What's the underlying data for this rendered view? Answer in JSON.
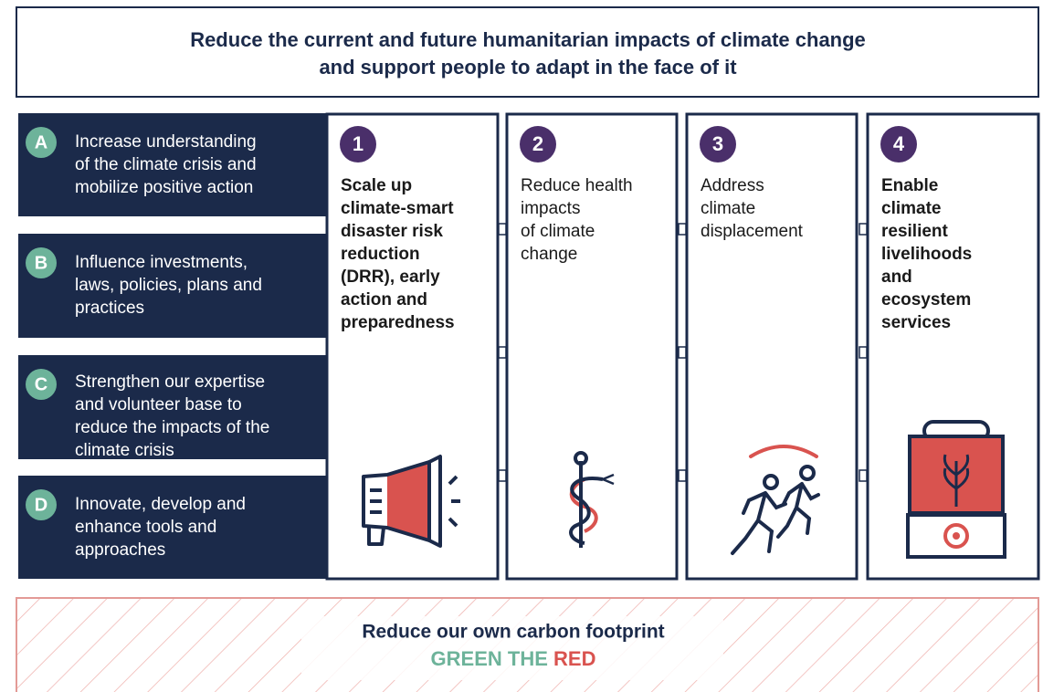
{
  "header": {
    "title_lines": [
      "Reduce the current and future humanitarian impacts of climate change",
      "and support people to adapt in the face of it"
    ]
  },
  "goals": [
    {
      "letter": "A",
      "lines": [
        "Increase understanding",
        "of the climate crisis and",
        "mobilize positive action"
      ]
    },
    {
      "letter": "B",
      "lines": [
        "Influence investments,",
        "laws, policies, plans and",
        "practices"
      ]
    },
    {
      "letter": "C",
      "lines": [
        "Strengthen our expertise",
        "and volunteer base to",
        "reduce the impacts of the",
        "climate crisis"
      ]
    },
    {
      "letter": "D",
      "lines": [
        "Innovate, develop and",
        "enhance tools and",
        "approaches"
      ]
    }
  ],
  "pillars": [
    {
      "number": "1",
      "bold": true,
      "lines": [
        "Scale up",
        "climate-smart",
        "disaster risk",
        "reduction",
        "(DRR), early",
        "action and",
        "preparedness"
      ]
    },
    {
      "number": "2",
      "bold": false,
      "lines": [
        "Reduce health",
        "impacts",
        "of climate",
        "change"
      ]
    },
    {
      "number": "3",
      "bold": false,
      "lines": [
        "Address",
        "climate",
        "displacement"
      ]
    },
    {
      "number": "4",
      "bold": true,
      "lines": [
        "Enable",
        "climate",
        "resilient",
        "livelihoods",
        "and",
        "ecosystem",
        "services"
      ]
    }
  ],
  "footer": {
    "title": "Reduce our own carbon footprint",
    "slogan_green": "GREEN THE",
    "slogan_red": "RED"
  }
}
